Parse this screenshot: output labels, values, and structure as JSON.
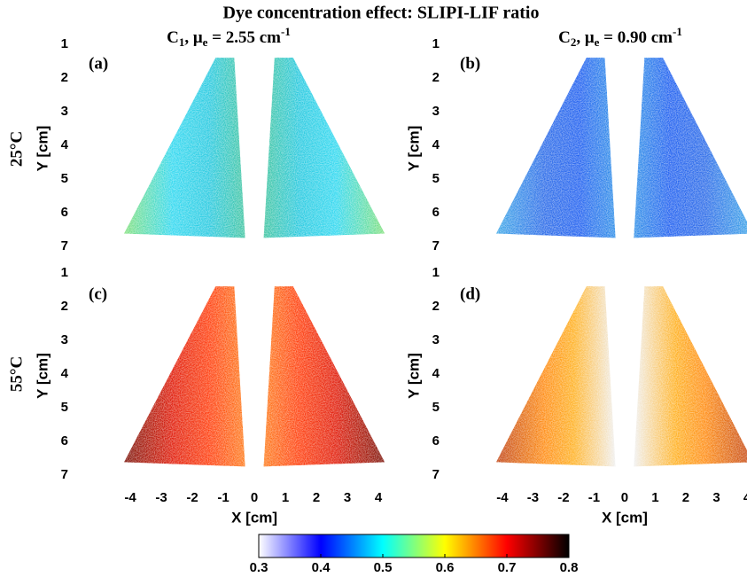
{
  "title": "Dye concentration effect: SLIPI-LIF ratio",
  "column_headers": [
    {
      "symbol": "C",
      "index": "1",
      "mu": ", μ",
      "mu_index": "e",
      "value": " = 2.55 cm",
      "exponent": "-1"
    },
    {
      "symbol": "C",
      "index": "2",
      "mu": ", μ",
      "mu_index": "e",
      "value": " = 0.90 cm",
      "exponent": "-1"
    }
  ],
  "row_labels": [
    "25°C",
    "55°C"
  ],
  "chart_data": [
    {
      "type": "image",
      "label": "(a)",
      "ylabel": "Y [cm]",
      "xlim": [
        -5.83,
        4.14
      ],
      "ylim": [
        0.74,
        7.45
      ],
      "y_inverted": true,
      "yticks": [
        1,
        2,
        3,
        4,
        5,
        6,
        7
      ]
    },
    {
      "type": "image",
      "label": "(b)",
      "ylabel": "Y [cm]",
      "xlim": [
        -5.88,
        4
      ],
      "ylim": [
        0.74,
        7.45
      ],
      "y_inverted": true,
      "yticks": [
        1,
        2,
        3,
        4,
        5,
        6,
        7
      ]
    },
    {
      "type": "image",
      "label": "(c)",
      "ylabel": "Y [cm]",
      "xlabel": "X [cm]",
      "xlim": [
        -5.83,
        4.14
      ],
      "ylim": [
        0.79,
        7.32
      ],
      "y_inverted": true,
      "yticks": [
        1,
        2,
        3,
        4,
        5,
        6,
        7
      ],
      "xticks": [
        -4,
        -3,
        -2,
        -1,
        0,
        1,
        2,
        3,
        4
      ]
    },
    {
      "type": "image",
      "label": "(d)",
      "ylabel": "Y [cm]",
      "xlabel": "X [cm]",
      "xlim": [
        -5.88,
        4
      ],
      "ylim": [
        0.79,
        7.32
      ],
      "y_inverted": true,
      "yticks": [
        1,
        2,
        3,
        4,
        5,
        6,
        7
      ],
      "xticks": [
        -4,
        -3,
        -2,
        -1,
        0,
        1,
        2,
        3,
        4
      ]
    }
  ],
  "colorbar": {
    "clim": [
      0.3,
      0.8
    ],
    "ticks": [
      0.3,
      0.4,
      0.5,
      0.6,
      0.7,
      0.8
    ],
    "colormap": [
      "#ffffff",
      "#0000ff",
      "#00ffff",
      "#ffff00",
      "#ff0000",
      "#000000"
    ]
  }
}
